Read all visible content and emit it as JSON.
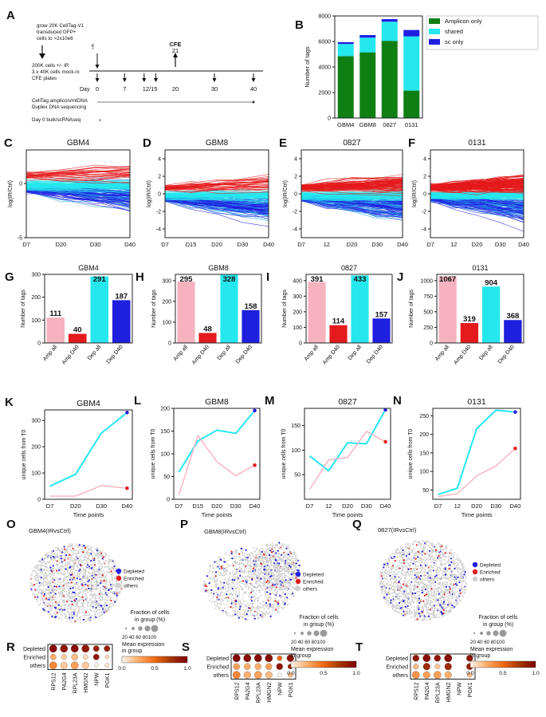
{
  "colors": {
    "red": "#e41a1c",
    "blue": "#1f1fe0",
    "cyan": "#25e7ee",
    "pink": "#f7b2bf",
    "green": "#0f7f14",
    "others": "#cfcfcf"
  },
  "panelA": {
    "letter": "A",
    "grow": [
      "grow 20K CellTag-V1",
      "transduced GFP+",
      "cells to >2x10e6"
    ],
    "plate": [
      "200K cells +/- IR",
      "3 x 40K cells mock-rx",
      "CFE plates"
    ],
    "ir": "+IR",
    "cfe": "CFE",
    "cfe_day": "21",
    "day_label": "Day",
    "days": [
      "0",
      "7",
      "12/15",
      "20",
      "30",
      "40"
    ],
    "seq": [
      "CellTag amplicon/mtDNA",
      "Duplex DNA sequencing"
    ],
    "rna": "Day 0 bulk/scRNAseq"
  },
  "panelB": {
    "letter": "B"
  },
  "lineLetters": [
    "C",
    "D",
    "E",
    "F"
  ],
  "barLetters": [
    "G",
    "H",
    "I",
    "J"
  ],
  "kLetters": [
    "K",
    "L",
    "M",
    "N"
  ],
  "umapLetters": [
    "O",
    "P",
    "Q"
  ],
  "dotLetters": [
    "R",
    "S",
    "T"
  ],
  "umap": {
    "titles": [
      "GBM4(IRvsCtrl)",
      "GBM8(IRvsCtrl)",
      "0827(IRvsCtrl)"
    ],
    "legend": [
      "Depleted",
      "Enriched",
      "others"
    ]
  },
  "dot": {
    "rows": [
      "Depleted",
      "Enriched",
      "others"
    ],
    "frac_title": [
      "Fraction of cells",
      "in group (%)"
    ],
    "frac_ticks": "20 40 60 80100",
    "mean_title": [
      "Mean expression",
      "in group"
    ],
    "cbar_ticks": [
      "0.0",
      "0.5",
      "1.0"
    ],
    "panels": [
      {
        "genes": [
          "RPS12",
          "PA2G4",
          "RPL23A",
          "HMGN2",
          "NPW",
          "PGK1"
        ],
        "values": [
          [
            0.95,
            0.9,
            0.95,
            0.9,
            0.85,
            0.85
          ],
          [
            0.25,
            0.15,
            0.2,
            0.1,
            0.9,
            0.1
          ],
          [
            0.4,
            0.15,
            0.3,
            0.15,
            0.0,
            0.05
          ]
        ],
        "sizes": [
          [
            1,
            1,
            1,
            1,
            0.7,
            0.7
          ],
          [
            0.7,
            0.6,
            0.8,
            0.5,
            0.7,
            0.3
          ],
          [
            1,
            0.9,
            1,
            0.9,
            0.3,
            0.4
          ]
        ]
      },
      {
        "genes": [
          "RPS12",
          "PA2G4",
          "RPL23A",
          "HMGN2",
          "NPW",
          "PGK1"
        ],
        "values": [
          [
            1.0,
            0.95,
            0.95,
            0.95,
            0.5,
            0.9
          ],
          [
            0.3,
            0.25,
            0.25,
            0.3,
            0.9,
            0.85
          ],
          [
            0.4,
            0.25,
            0.3,
            0.2,
            0.0,
            0.2
          ]
        ],
        "sizes": [
          [
            1,
            1,
            1,
            1,
            0.5,
            0.9
          ],
          [
            0.8,
            0.8,
            0.8,
            0.8,
            0.8,
            0.5
          ],
          [
            1,
            0.9,
            1,
            0.9,
            0.3,
            0.5
          ]
        ]
      },
      {
        "genes": [
          "RPS12",
          "PA2G4",
          "RPL23A",
          "HMGN2",
          "NPW",
          "PGK1"
        ],
        "values": [
          [
            0.9,
            0.95,
            0.9,
            0.95,
            0.0,
            0.9
          ],
          [
            0.2,
            0.8,
            0.15,
            0.8,
            0.0,
            0.85
          ],
          [
            0.35,
            0.3,
            0.3,
            0.25,
            0.0,
            0.2
          ]
        ],
        "sizes": [
          [
            0.8,
            1,
            0.8,
            1,
            0.0,
            0.8
          ],
          [
            0.6,
            0.9,
            0.6,
            0.9,
            0.0,
            0.8
          ],
          [
            1,
            0.9,
            1,
            0.9,
            0.0,
            0.5
          ]
        ]
      }
    ]
  },
  "chart_data": [
    {
      "id": "B",
      "type": "bar",
      "stacked": true,
      "title": "",
      "xlabel": "",
      "ylabel": "Number of tags",
      "categories": [
        "GBM4",
        "GBM8",
        "0827",
        "0131"
      ],
      "series": [
        {
          "name": "Amplicon only",
          "color": "green",
          "values": [
            4850,
            5150,
            6050,
            2150
          ]
        },
        {
          "name": "shared",
          "color": "cyan",
          "values": [
            950,
            1150,
            1500,
            4250
          ]
        },
        {
          "name": "sc only",
          "color": "blue",
          "values": [
            150,
            200,
            200,
            500
          ]
        }
      ],
      "ylim": [
        0,
        8000
      ],
      "yticks": [
        0,
        2000,
        4000,
        6000,
        8000
      ]
    },
    {
      "id": "C",
      "type": "line",
      "title": "GBM4",
      "ylabel": "log(IR/Ctrl)",
      "categories": [
        "D7",
        "D20",
        "D30",
        "D40"
      ],
      "ylim": [
        -5,
        3.1
      ],
      "yticks": [
        -5,
        0
      ],
      "series_counts": {
        "enriched": 40,
        "depleted": 187
      }
    },
    {
      "id": "D",
      "type": "line",
      "title": "GBM8",
      "ylabel": "log(IR/Ctrl)",
      "categories": [
        "D7",
        "D15",
        "D20",
        "D30",
        "D40"
      ],
      "ylim": [
        -5,
        5
      ],
      "yticks": [
        -4,
        -2,
        0,
        2,
        4
      ],
      "series_counts": {
        "enriched": 48,
        "depleted": 158
      }
    },
    {
      "id": "E",
      "type": "line",
      "title": "0827",
      "ylabel": "log(IR/Ctrl)",
      "categories": [
        "D7",
        "12",
        "D20",
        "D30",
        "D40"
      ],
      "ylim": [
        -5,
        5
      ],
      "yticks": [
        -4,
        -2,
        0,
        2,
        4
      ],
      "series_counts": {
        "enriched": 114,
        "depleted": 157
      }
    },
    {
      "id": "F",
      "type": "line",
      "title": "0131",
      "ylabel": "log(IR/Ctrl)",
      "categories": [
        "D7",
        "12",
        "D20",
        "D30",
        "D40"
      ],
      "ylim": [
        -5,
        5
      ],
      "yticks": [
        -4,
        -2,
        0,
        2,
        4
      ],
      "series_counts": {
        "enriched": 319,
        "depleted": 368
      }
    },
    {
      "id": "G",
      "type": "bar",
      "title": "GBM4",
      "ylabel": "Number of tags",
      "categories": [
        "Amp all",
        "Amp D40",
        "Dep all",
        "Dep D40"
      ],
      "values": [
        111,
        40,
        291,
        187
      ],
      "colors": [
        "pink",
        "red",
        "cyan",
        "blue"
      ],
      "ylim": [
        0,
        300
      ],
      "yticks": [
        0,
        100,
        200,
        300
      ]
    },
    {
      "id": "H",
      "type": "bar",
      "title": "GBM8",
      "ylabel": "Number of tags",
      "categories": [
        "Amp all",
        "Amp D40",
        "Dep all",
        "Dep D40"
      ],
      "values": [
        295,
        48,
        328,
        158
      ],
      "colors": [
        "pink",
        "red",
        "cyan",
        "blue"
      ],
      "ylim": [
        0,
        330
      ],
      "yticks": [
        0,
        100,
        200,
        300
      ]
    },
    {
      "id": "I",
      "type": "bar",
      "title": "0827",
      "ylabel": "Number of tags",
      "categories": [
        "Amp all",
        "Amp D40",
        "Dep all",
        "Dep D40"
      ],
      "values": [
        391,
        114,
        433,
        157
      ],
      "colors": [
        "pink",
        "red",
        "cyan",
        "blue"
      ],
      "ylim": [
        0,
        440
      ],
      "yticks": [
        0,
        100,
        200,
        300,
        400
      ]
    },
    {
      "id": "J",
      "type": "bar",
      "title": "0131",
      "ylabel": "Number of tags",
      "categories": [
        "Amp all",
        "Amp D40",
        "Dep all",
        "Dep D40"
      ],
      "values": [
        1067,
        319,
        904,
        368
      ],
      "colors": [
        "pink",
        "red",
        "cyan",
        "blue"
      ],
      "ylim": [
        0,
        1100
      ],
      "yticks": [
        0,
        250,
        500,
        750,
        1000
      ]
    },
    {
      "id": "K",
      "type": "line",
      "title": "GBM4",
      "xlabel": "Time points",
      "ylabel": "unique cells from T0",
      "categories": [
        "D7",
        "D20",
        "D30",
        "D40"
      ],
      "ylim": [
        0,
        340
      ],
      "yticks": [
        0,
        100,
        200,
        300
      ],
      "series": [
        {
          "name": "Depleted",
          "color": "cyan",
          "values": [
            50,
            95,
            252,
            330
          ]
        },
        {
          "name": "Enriched",
          "color": "pink",
          "values": [
            12,
            12,
            52,
            42
          ]
        }
      ]
    },
    {
      "id": "L",
      "type": "line",
      "title": "GBM8",
      "xlabel": "Time points",
      "ylabel": "unique cells from T0",
      "categories": [
        "D7",
        "D15",
        "D20",
        "D30",
        "D40"
      ],
      "ylim": [
        0,
        200
      ],
      "yticks": [
        0,
        50,
        100,
        150,
        200
      ],
      "series": [
        {
          "name": "Depleted",
          "color": "cyan",
          "values": [
            60,
            128,
            152,
            145,
            195
          ]
        },
        {
          "name": "Enriched",
          "color": "pink",
          "values": [
            10,
            140,
            83,
            52,
            75
          ]
        }
      ]
    },
    {
      "id": "M",
      "type": "line",
      "title": "0827",
      "xlabel": "Time points",
      "ylabel": "unique cells from T0",
      "categories": [
        "D7",
        "12",
        "D20",
        "D30",
        "D40"
      ],
      "ylim": [
        0,
        185
      ],
      "yticks": [
        50,
        100,
        150
      ],
      "series": [
        {
          "name": "Depleted",
          "color": "cyan",
          "values": [
            88,
            58,
            115,
            113,
            182
          ]
        },
        {
          "name": "Enriched",
          "color": "pink",
          "values": [
            20,
            80,
            85,
            138,
            117
          ]
        }
      ]
    },
    {
      "id": "N",
      "type": "line",
      "title": "0131",
      "xlabel": "Time points",
      "ylabel": "unique cells from T0",
      "categories": [
        "D7",
        "12",
        "D20",
        "D30",
        "D40"
      ],
      "ylim": [
        25,
        270
      ],
      "yticks": [
        50,
        100,
        150,
        200,
        250
      ],
      "series": [
        {
          "name": "Depleted",
          "color": "cyan",
          "values": [
            38,
            55,
            215,
            265,
            260
          ]
        },
        {
          "name": "Enriched",
          "color": "pink",
          "values": [
            32,
            40,
            88,
            115,
            162
          ]
        }
      ]
    }
  ]
}
